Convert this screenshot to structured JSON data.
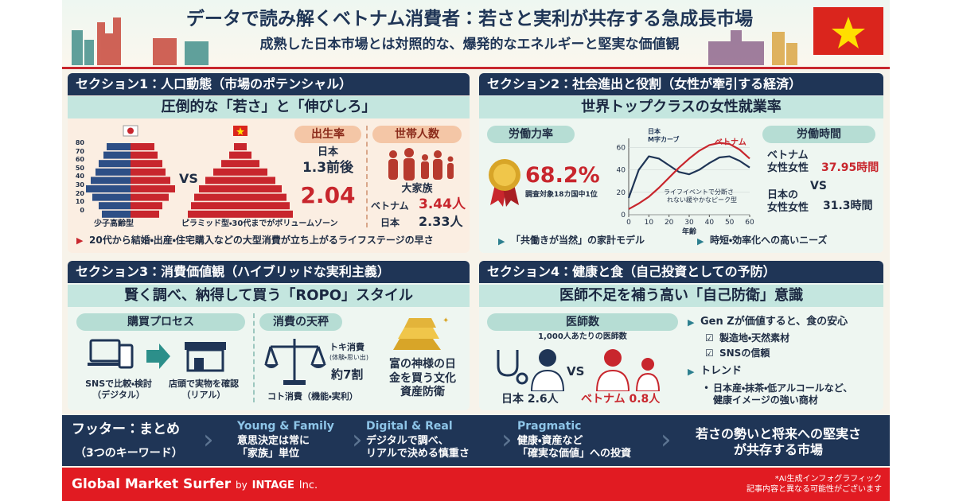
{
  "header": {
    "title": "データで読み解くベトナム消費者：若さと実利が共存する急成長市場",
    "subtitle": "成熟した日本市場とは対照的な、爆発的なエネルギーと堅実な価値観"
  },
  "section1": {
    "heading": "セクション1：人口動態（市場のポテンシャル）",
    "subheading": "圧倒的な「若さ」と「伸びしろ」",
    "age_ticks": [
      80,
      70,
      60,
      50,
      40,
      30,
      20,
      10,
      0
    ],
    "vs": "VS",
    "japan_caption": "少子高齢型",
    "vietnam_caption": "ピラミッド型・30代までがボリュームゾーン",
    "birth_rate": {
      "label": "出生率",
      "japan": "日本",
      "japan_value": "1.3前後",
      "vietnam_value": "2.04"
    },
    "household": {
      "label": "世帯人数",
      "caption": "大家族",
      "vietnam": "ベトナム",
      "vietnam_value": "3.44人",
      "japan": "日本",
      "japan_value": "2.33人"
    },
    "note": "20代から結婚・出産・住宅購入などの大型消費が立ち上がるライフステージの早さ"
  },
  "section2": {
    "heading": "セクション2：社会進出と役割（女性が牽引する経済）",
    "subheading": "世界トップクラスの女性就業率",
    "labor_rate": {
      "label": "労働力率",
      "value": "68.2%",
      "caption": "調査対象18カ国中1位"
    },
    "chart": {
      "type": "line",
      "x": [
        0,
        5,
        10,
        15,
        20,
        25,
        30,
        35,
        40,
        45,
        50,
        55,
        60
      ],
      "xlim": [
        0,
        60
      ],
      "xticks": [
        0,
        10,
        20,
        30,
        40,
        50,
        60
      ],
      "ylim": [
        0,
        68
      ],
      "yticks": [
        0,
        20,
        40,
        60
      ],
      "x_label": "年齢",
      "series": [
        {
          "name": "日本\nM字カーブ",
          "color": "#1f3556",
          "values": [
            15,
            40,
            52,
            50,
            44,
            38,
            36,
            40,
            46,
            51,
            52,
            48,
            42
          ]
        },
        {
          "name": "ベトナム",
          "color": "#c8262d",
          "values": [
            5,
            10,
            16,
            24,
            33,
            42,
            50,
            57,
            62,
            64,
            63,
            58,
            50
          ]
        }
      ],
      "annotation": "ライフイベントで分断さ\nれない緩やかなピーク型"
    },
    "work_hours": {
      "label": "労働時間",
      "vietnam": "ベトナム\n女性女性",
      "vietnam_value": "37.95時間",
      "vs": "VS",
      "japan": "日本の\n女性女性",
      "japan_value": "31.3時間"
    },
    "bullets": [
      "「共働きが当然」の家計モデル",
      "時短・効率化への高いニーズ"
    ]
  },
  "section3": {
    "heading": "セクション3：消費価値観（ハイブリッドな実利主義）",
    "subheading": "賢く調べ、納得して買う「ROPO」スタイル",
    "process": {
      "label": "購買プロセス",
      "digital": "SNSで比較・検討\n（デジタル）",
      "real": "店頭で実物を確認\n（リアル）"
    },
    "balance": {
      "label": "消費の天秤",
      "toki": "トキ消費",
      "toki_sub": "(体験・思い出)",
      "share": "約7割",
      "koto": "コト消費（機能・実利）"
    },
    "gold": "富の神様の日\n金を買う文化\n資産防衛"
  },
  "section4": {
    "heading": "セクション4：健康と食（自己投資としての予防）",
    "subheading": "医師不足を補う高い「自己防衛」意識",
    "doctors": {
      "label": "医師数",
      "caption": "1,000人あたりの医師数",
      "vs": "VS",
      "japan": "日本 2.6人",
      "vietnam": "ベトナム 0.8人"
    },
    "genz": {
      "label": "Gen Zが価値すると、食の安心",
      "items": [
        "製造地・天然素材",
        "SNSの信頼"
      ]
    },
    "trend": {
      "label": "トレンド",
      "text": "日本産・抹茶・低アルコールなど、\n健康イメージの強い商材"
    }
  },
  "footer": {
    "title": "フッター：まとめ",
    "subtitle": "（3つのキーワード）",
    "keywords": [
      {
        "title": "Young & Family",
        "text": "意思決定は常に\n「家族」単位"
      },
      {
        "title": "Digital & Real",
        "text": "デジタルで調べ、\nリアルで決める慎重さ"
      },
      {
        "title": "Pragmatic",
        "text": "健康・資産など\n「確実な価値」への投資"
      }
    ],
    "conclusion": "若さの勢いと将来への堅実さ\nが共存する市場"
  },
  "brand": {
    "name": "Global Market Surfer",
    "by": "by",
    "company": "INTAGE",
    "suffix": "Inc.",
    "note": "*AI生成インフォグラフィック\n記事内容と異なる可能性がございます"
  }
}
